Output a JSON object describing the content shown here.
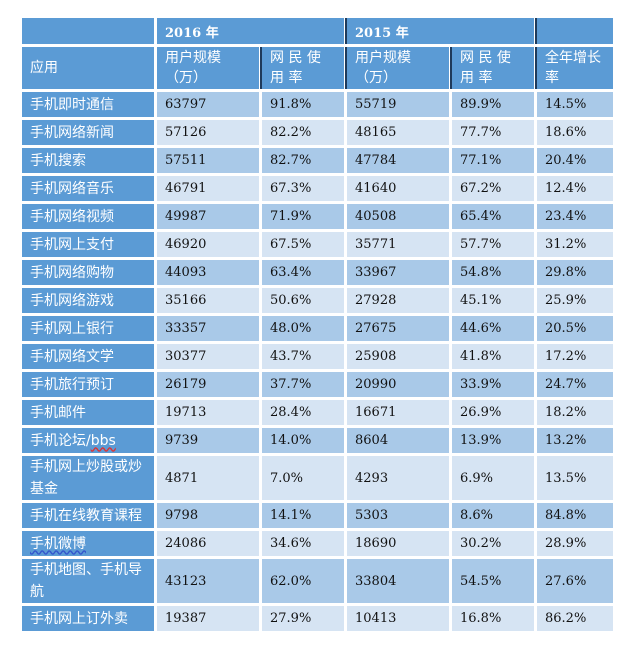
{
  "header": {
    "year_2016": "2016 年",
    "year_2015": "2015 年",
    "app_col": "应用",
    "users_2016": "用户规模（万）",
    "rate_2016": "网 民 使 用 率",
    "users_2015": "用户规模（万）",
    "rate_2015": "网 民 使 用 率",
    "growth": "全年增长率"
  },
  "rows": [
    {
      "app": "手机即时通信",
      "u2016": "63797",
      "r2016": "91.8%",
      "u2015": "55719",
      "r2015": "89.9%",
      "growth": "14.5%"
    },
    {
      "app": "手机网络新闻",
      "u2016": "57126",
      "r2016": "82.2%",
      "u2015": "48165",
      "r2015": "77.7%",
      "growth": "18.6%"
    },
    {
      "app": "手机搜索",
      "u2016": "57511",
      "r2016": "82.7%",
      "u2015": "47784",
      "r2015": "77.1%",
      "growth": "20.4%"
    },
    {
      "app": "手机网络音乐",
      "u2016": "46791",
      "r2016": "67.3%",
      "u2015": "41640",
      "r2015": "67.2%",
      "growth": "12.4%"
    },
    {
      "app": "手机网络视频",
      "u2016": "49987",
      "r2016": "71.9%",
      "u2015": "40508",
      "r2015": "65.4%",
      "growth": "23.4%"
    },
    {
      "app": "手机网上支付",
      "u2016": "46920",
      "r2016": "67.5%",
      "u2015": "35771",
      "r2015": "57.7%",
      "growth": "31.2%"
    },
    {
      "app": "手机网络购物",
      "u2016": "44093",
      "r2016": "63.4%",
      "u2015": "33967",
      "r2015": "54.8%",
      "growth": "29.8%"
    },
    {
      "app": "手机网络游戏",
      "u2016": "35166",
      "r2016": "50.6%",
      "u2015": "27928",
      "r2015": "45.1%",
      "growth": "25.9%"
    },
    {
      "app": "手机网上银行",
      "u2016": "33357",
      "r2016": "48.0%",
      "u2015": "27675",
      "r2015": "44.6%",
      "growth": "20.5%"
    },
    {
      "app": "手机网络文学",
      "u2016": "30377",
      "r2016": "43.7%",
      "u2015": "25908",
      "r2015": "41.8%",
      "growth": "17.2%"
    },
    {
      "app": "手机旅行预订",
      "u2016": "26179",
      "r2016": "37.7%",
      "u2015": "20990",
      "r2015": "33.9%",
      "growth": "24.7%"
    },
    {
      "app": "手机邮件",
      "u2016": "19713",
      "r2016": "28.4%",
      "u2015": "16671",
      "r2015": "26.9%",
      "growth": "18.2%"
    },
    {
      "app_prefix": "手机论坛/",
      "app_suffix": "bbs",
      "u2016": "9739",
      "r2016": "14.0%",
      "u2015": "8604",
      "r2015": "13.9%",
      "growth": "13.2%"
    },
    {
      "app": "手机网上炒股或炒基金",
      "u2016": "4871",
      "r2016": "7.0%",
      "u2015": "4293",
      "r2015": "6.9%",
      "growth": "13.5%"
    },
    {
      "app": "手机在线教育课程",
      "u2016": "9798",
      "r2016": "14.1%",
      "u2015": "5303",
      "r2015": "8.6%",
      "growth": "84.8%"
    },
    {
      "app": "手机微博",
      "u2016": "24086",
      "r2016": "34.6%",
      "u2015": "18690",
      "r2015": "30.2%",
      "growth": "28.9%"
    },
    {
      "app": "手机地图、手机导航",
      "u2016": "43123",
      "r2016": "62.0%",
      "u2015": "33804",
      "r2015": "54.5%",
      "growth": "27.6%"
    },
    {
      "app": "手机网上订外卖",
      "u2016": "19387",
      "r2016": "27.9%",
      "u2015": "10413",
      "r2015": "16.8%",
      "growth": "86.2%"
    }
  ],
  "colors": {
    "header_blue": "#5B9BD5",
    "row_dark": "#A9C9E8",
    "row_light": "#D6E4F3"
  }
}
